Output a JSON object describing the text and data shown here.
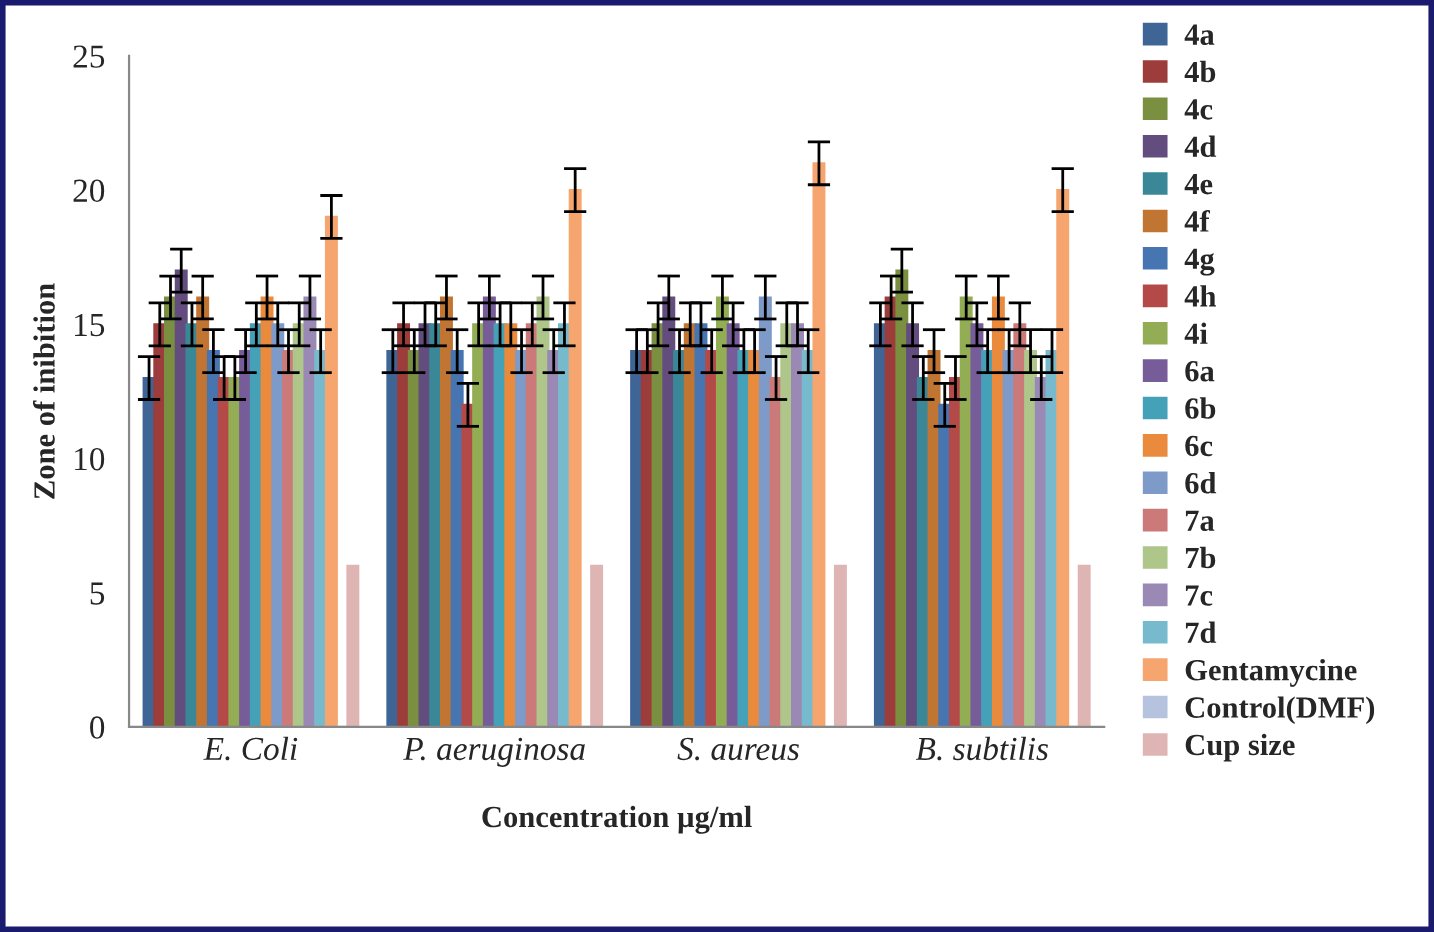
{
  "chart_data": {
    "type": "bar",
    "xlabel": "Concentration µg/ml",
    "ylabel": "Zone of inibition",
    "categories": [
      "E. Coli",
      "P. aeruginosa",
      "S. aureus",
      "B. subtilis"
    ],
    "ylim": [
      0,
      25
    ],
    "yticks": [
      0,
      5,
      10,
      15,
      20,
      25
    ],
    "grid": false,
    "legend": "right",
    "series": [
      {
        "name": "4a",
        "color": "#3f6597",
        "values": [
          13,
          14,
          14,
          15
        ],
        "errors": [
          0.8,
          0.8,
          0.8,
          0.8
        ]
      },
      {
        "name": "4b",
        "color": "#9c3d3b",
        "values": [
          15,
          15,
          14,
          16
        ],
        "errors": [
          0.8,
          0.8,
          0.8,
          0.8
        ]
      },
      {
        "name": "4c",
        "color": "#7a8f3f",
        "values": [
          16,
          14,
          15,
          17
        ],
        "errors": [
          0.8,
          0.8,
          0.8,
          0.8
        ]
      },
      {
        "name": "4d",
        "color": "#634d7e",
        "values": [
          17,
          15,
          16,
          15
        ],
        "errors": [
          0.8,
          0.8,
          0.8,
          0.8
        ]
      },
      {
        "name": "4e",
        "color": "#3a8797",
        "values": [
          15,
          15,
          14,
          13
        ],
        "errors": [
          0.8,
          0.8,
          0.8,
          0.8
        ]
      },
      {
        "name": "4f",
        "color": "#c17533",
        "values": [
          16,
          16,
          15,
          14
        ],
        "errors": [
          0.8,
          0.8,
          0.8,
          0.8
        ]
      },
      {
        "name": "4g",
        "color": "#4775b1",
        "values": [
          14,
          14,
          15,
          12
        ],
        "errors": [
          0.8,
          0.8,
          0.8,
          0.8
        ]
      },
      {
        "name": "4h",
        "color": "#b44a48",
        "values": [
          13,
          12,
          14,
          13
        ],
        "errors": [
          0.8,
          0.8,
          0.8,
          0.8
        ]
      },
      {
        "name": "4i",
        "color": "#92ad53",
        "values": [
          13,
          15,
          16,
          16
        ],
        "errors": [
          0.8,
          0.8,
          0.8,
          0.8
        ]
      },
      {
        "name": "6a",
        "color": "#775c9a",
        "values": [
          14,
          16,
          15,
          15
        ],
        "errors": [
          0.8,
          0.8,
          0.8,
          0.8
        ]
      },
      {
        "name": "6b",
        "color": "#45a1b8",
        "values": [
          15,
          15,
          14,
          14
        ],
        "errors": [
          0.8,
          0.8,
          0.8,
          0.8
        ]
      },
      {
        "name": "6c",
        "color": "#e98a3d",
        "values": [
          16,
          15,
          14,
          16
        ],
        "errors": [
          0.8,
          0.8,
          0.8,
          0.8
        ]
      },
      {
        "name": "6d",
        "color": "#7e9ac8",
        "values": [
          15,
          14,
          16,
          14
        ],
        "errors": [
          0.8,
          0.8,
          0.8,
          0.8
        ]
      },
      {
        "name": "7a",
        "color": "#cb7a79",
        "values": [
          14,
          15,
          13,
          15
        ],
        "errors": [
          0.8,
          0.8,
          0.8,
          0.8
        ]
      },
      {
        "name": "7b",
        "color": "#aec68a",
        "values": [
          15,
          16,
          15,
          14
        ],
        "errors": [
          0.8,
          0.8,
          0.8,
          0.8
        ]
      },
      {
        "name": "7c",
        "color": "#9a89b5",
        "values": [
          16,
          14,
          15,
          13
        ],
        "errors": [
          0.8,
          0.8,
          0.8,
          0.8
        ]
      },
      {
        "name": "7d",
        "color": "#78bacd",
        "values": [
          14,
          15,
          14,
          14
        ],
        "errors": [
          0.8,
          0.8,
          0.8,
          0.8
        ]
      },
      {
        "name": "Gentamycine",
        "color": "#f6a56f",
        "values": [
          19,
          20,
          21,
          20
        ],
        "errors": [
          0.8,
          0.8,
          0.8,
          0.8
        ]
      },
      {
        "name": "Control(DMF)",
        "color": "#b5c3de",
        "values": [
          0,
          0,
          0,
          0
        ]
      },
      {
        "name": "Cup size",
        "color": "#dfb5b4",
        "values": [
          6,
          6,
          6,
          6
        ]
      }
    ]
  }
}
